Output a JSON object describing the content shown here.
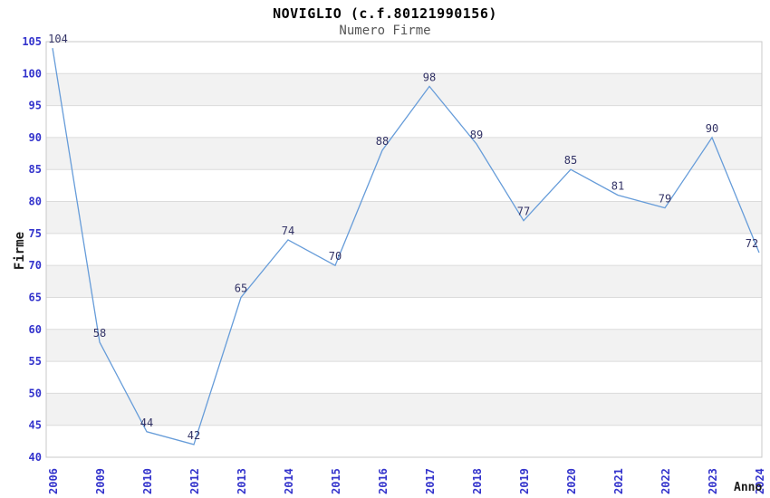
{
  "chart_data": {
    "type": "line",
    "title": "NOVIGLIO (c.f.80121990156)",
    "subtitle": "Numero Firme",
    "xlabel": "Anno",
    "ylabel": "Firme",
    "categories": [
      "2006",
      "2009",
      "2010",
      "2012",
      "2013",
      "2014",
      "2015",
      "2016",
      "2017",
      "2018",
      "2019",
      "2020",
      "2021",
      "2022",
      "2023",
      "2024"
    ],
    "values": [
      104,
      58,
      44,
      42,
      65,
      74,
      70,
      88,
      98,
      89,
      77,
      85,
      81,
      79,
      90,
      72
    ],
    "yticks": [
      40,
      45,
      50,
      55,
      60,
      65,
      70,
      75,
      80,
      85,
      90,
      95,
      100,
      105
    ],
    "ylim": [
      40,
      105
    ],
    "ytick_step": 5,
    "grid": true,
    "banded_background": true,
    "legend_position": "none",
    "colors": {
      "line": "#669cd9",
      "tick_label": "#3333cc",
      "data_label": "#333366",
      "band_fill": "#f2f2f2",
      "gridline": "#dbdbdb",
      "plot_border": "#c8c8c8",
      "title": "#000000",
      "subtitle": "#555555",
      "background": "#ffffff"
    }
  }
}
